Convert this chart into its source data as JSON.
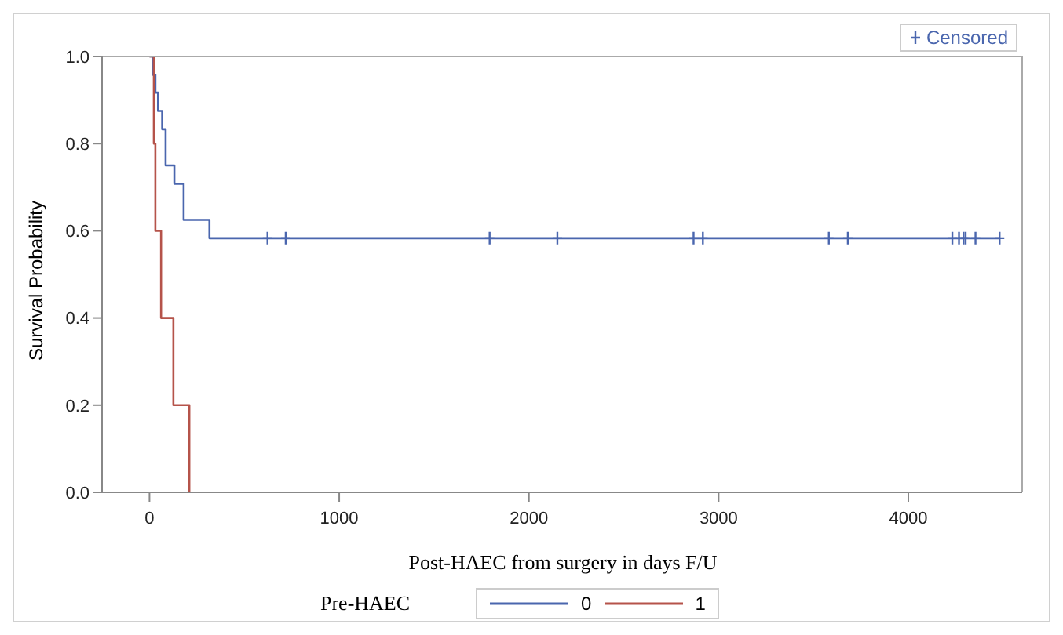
{
  "chart_data": {
    "type": "step",
    "xlabel": "Post-HAEC from surgery in days F/U",
    "ylabel": "Survival Probability",
    "legend_title": "Pre-HAEC",
    "xlim": [
      -250,
      4600
    ],
    "xticks": [
      0,
      1000,
      2000,
      3000,
      4000
    ],
    "ylim": [
      0,
      1
    ],
    "yticks": [
      {
        "value": 0,
        "label": "0.0"
      },
      {
        "value": 0.2,
        "label": "0.2"
      },
      {
        "value": 0.4,
        "label": "0.4"
      },
      {
        "value": 0.6,
        "label": "0.6"
      },
      {
        "value": 0.8,
        "label": "0.8"
      },
      {
        "value": 1,
        "label": "1.0"
      }
    ],
    "legend": "bottom",
    "series": [
      {
        "name": "0",
        "color": "#4a66ae",
        "x": [
          0,
          18,
          31,
          45,
          67,
          85,
          131,
          180,
          316,
          4481
        ],
        "values": [
          1,
          0.958,
          0.917,
          0.875,
          0.833,
          0.75,
          0.708,
          0.625,
          0.583,
          0.583
        ]
      },
      {
        "name": "1",
        "color": "#b5534a",
        "x": [
          0,
          23,
          31,
          61,
          126,
          210
        ],
        "values": [
          1,
          0.8,
          0.6,
          0.4,
          0.2,
          0
        ]
      },
      {
        "name": "Censored",
        "type": "scatter",
        "marker": "cross",
        "color": "#4a66ae",
        "x": [
          622,
          718,
          1793,
          2150,
          2868,
          2917,
          3581,
          3681,
          4232,
          4267,
          4291,
          4302,
          4354,
          4481
        ],
        "values": [
          0.583,
          0.583,
          0.583,
          0.583,
          0.583,
          0.583,
          0.583,
          0.583,
          0.583,
          0.583,
          0.583,
          0.583,
          0.583,
          0.583
        ]
      }
    ]
  }
}
